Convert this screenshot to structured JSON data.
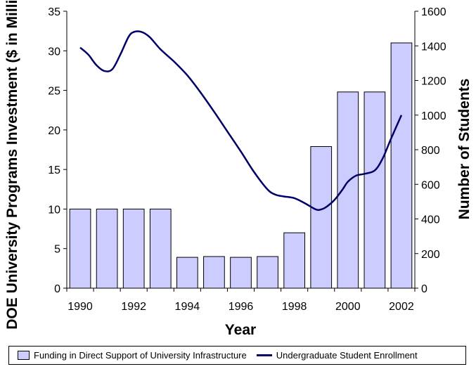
{
  "chart_data": {
    "type": "bar",
    "categories": [
      "1990",
      "1991",
      "1992",
      "1993",
      "1994",
      "1995",
      "1996",
      "1997",
      "1998",
      "1999",
      "2000",
      "2001",
      "2002"
    ],
    "x_tick_labels": [
      "1990",
      "1992",
      "1994",
      "1996",
      "1998",
      "2000",
      "2002"
    ],
    "xlabel": "Year",
    "ylabel_left": "DOE University Programs Investment ($ in Millions)",
    "ylabel_right": "Number of Students",
    "ylim_left": [
      0,
      35
    ],
    "yticks_left": [
      "0",
      "5",
      "10",
      "15",
      "20",
      "25",
      "30",
      "35"
    ],
    "ylim_right": [
      0,
      1600
    ],
    "yticks_right": [
      "0",
      "200",
      "400",
      "600",
      "800",
      "1000",
      "1200",
      "1400",
      "1600"
    ],
    "grid": false,
    "legend_position": "bottom",
    "series": [
      {
        "name": "Funding in Direct Support of University Infrastructure",
        "type": "bar",
        "axis": "left",
        "color": "#ccccff",
        "values": [
          10,
          10,
          10,
          10,
          3.9,
          4,
          3.9,
          4,
          7,
          17.9,
          24.8,
          24.8,
          31
        ]
      },
      {
        "name": "Undergraduate Student Enrollment",
        "type": "line",
        "axis": "right",
        "color": "#000066",
        "x": [
          1990,
          1990.3,
          1990.6,
          1990.9,
          1991.2,
          1991.5,
          1991.8,
          1992,
          1992.3,
          1992.6,
          1993,
          1993.5,
          1994,
          1994.5,
          1995,
          1995.5,
          1996,
          1996.5,
          1997,
          1997.3,
          1997.6,
          1998,
          1998.4,
          1998.8,
          1999,
          1999.2,
          1999.5,
          1999.8,
          2000,
          2000.3,
          2000.6,
          2001,
          2001.3,
          2001.6,
          2002
        ],
        "values": [
          1390,
          1350,
          1290,
          1255,
          1265,
          1350,
          1450,
          1480,
          1480,
          1450,
          1380,
          1310,
          1230,
          1130,
          1020,
          905,
          790,
          670,
          570,
          540,
          530,
          520,
          490,
          455,
          455,
          470,
          510,
          570,
          615,
          650,
          660,
          680,
          750,
          860,
          1000
        ]
      }
    ]
  }
}
